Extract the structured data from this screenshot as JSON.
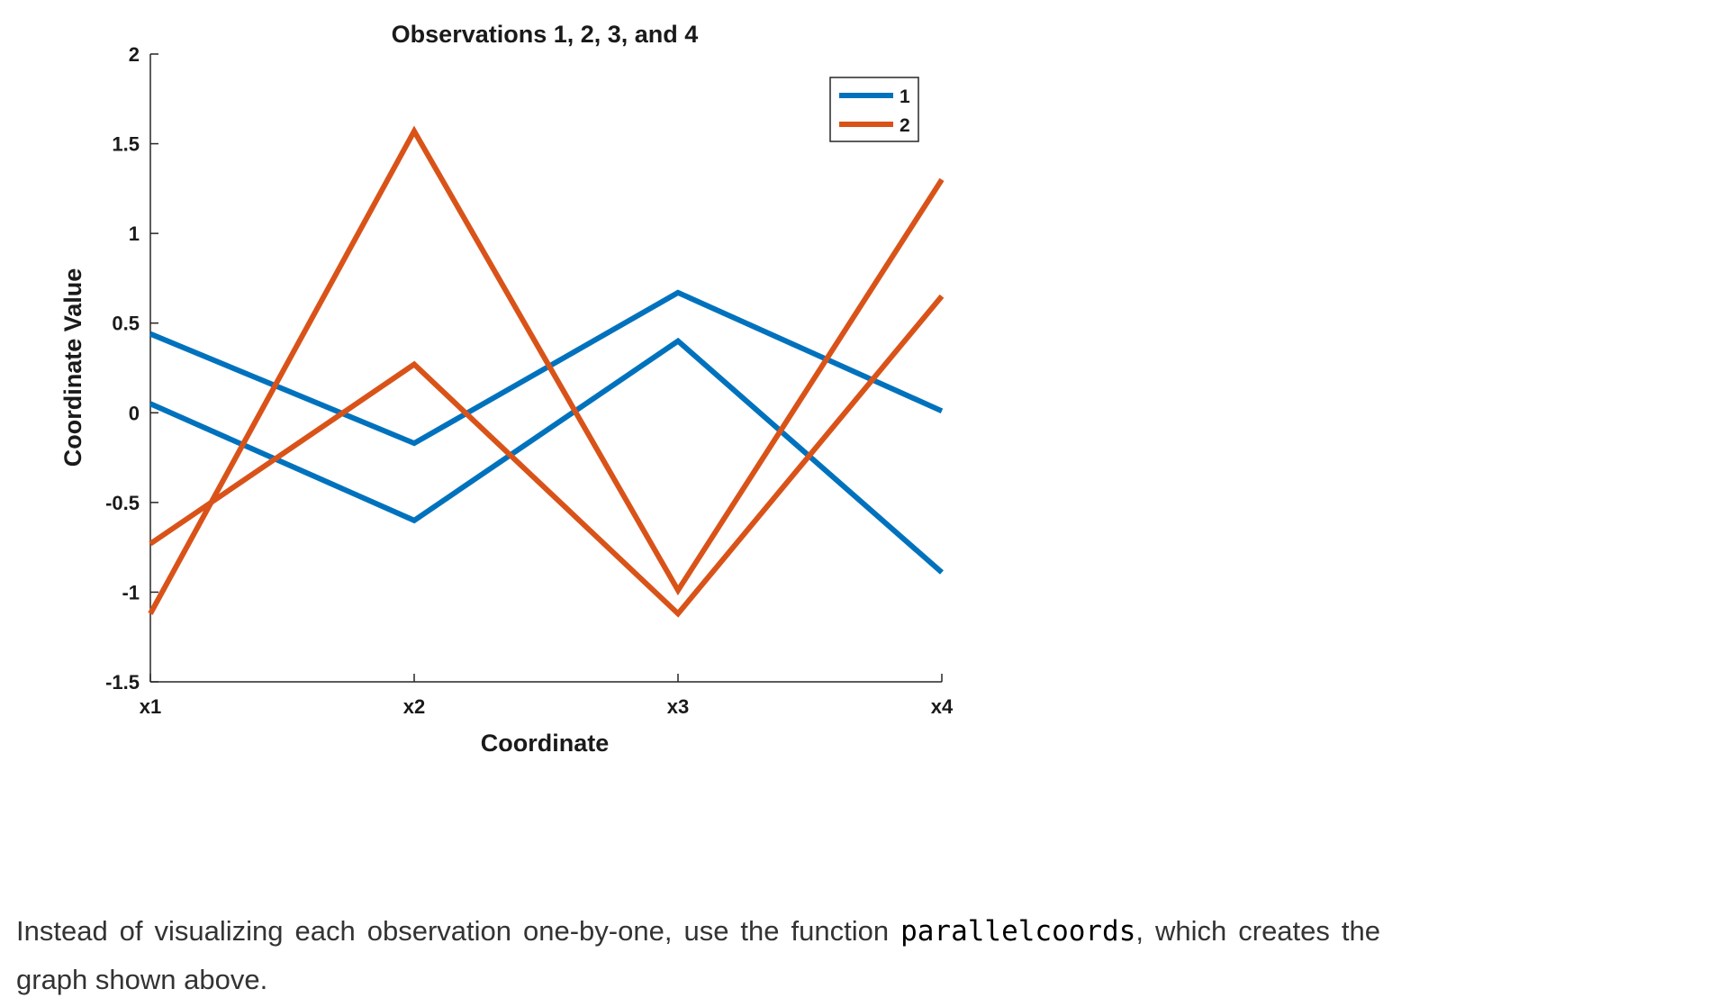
{
  "chart_data": {
    "type": "line",
    "title": "Observations 1, 2, 3, and 4",
    "xlabel": "Coordinate",
    "ylabel": "Coordinate Value",
    "categories": [
      "x1",
      "x2",
      "x3",
      "x4"
    ],
    "ylim": [
      -1.5,
      2
    ],
    "yticks": [
      -1.5,
      -1,
      -0.5,
      0,
      0.5,
      1,
      1.5,
      2
    ],
    "ytick_labels": [
      "-1.5",
      "-1",
      "-0.5",
      "0",
      "0.5",
      "1",
      "1.5",
      "2"
    ],
    "grid": false,
    "legend": {
      "placement": "top-right",
      "entries": [
        "1",
        "2"
      ]
    },
    "series": [
      {
        "name": "1",
        "color": "#0072BD",
        "values": [
          0.44,
          -0.17,
          0.67,
          0.01
        ]
      },
      {
        "name": "1",
        "color": "#0072BD",
        "values": [
          0.05,
          -0.6,
          0.4,
          -0.89
        ]
      },
      {
        "name": "2",
        "color": "#D95319",
        "values": [
          -1.12,
          1.57,
          -0.99,
          1.3
        ]
      },
      {
        "name": "2",
        "color": "#D95319",
        "values": [
          -0.73,
          0.27,
          -1.12,
          0.65
        ]
      }
    ]
  },
  "caption": {
    "before": "Instead of visualizing each observation one-by-one, use the function ",
    "code": "parallelcoords",
    "after": ", which creates the graph shown above."
  }
}
